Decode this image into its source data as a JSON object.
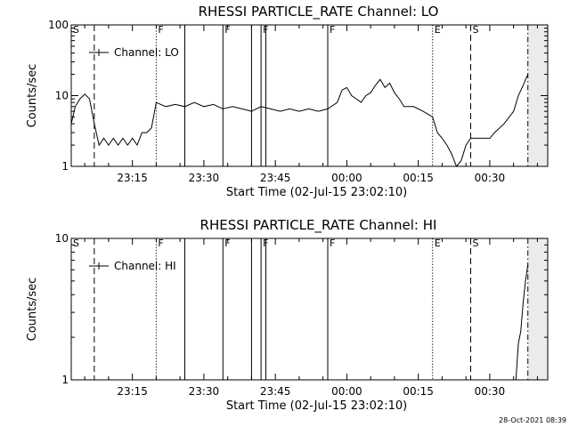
{
  "timestamp": "28-Oct-2021 08:39",
  "chart_data": [
    {
      "type": "line",
      "title": "RHESSI PARTICLE_RATE Channel: LO",
      "xlabel": "Start Time (02-Jul-15 23:02:10)",
      "ylabel": "Counts/sec",
      "yscale": "log",
      "ylim": [
        1,
        100
      ],
      "yticks": [
        "1",
        "10",
        "100"
      ],
      "xlim": [
        "23:02:10",
        "00:42:10"
      ],
      "xticks": [
        "23:15",
        "23:30",
        "23:45",
        "00:00",
        "00:15",
        "00:30"
      ],
      "legend": {
        "position": "top-left",
        "entries": [
          "Channel: LO"
        ]
      },
      "shaded_region": [
        "00:38:00",
        "00:42:10"
      ],
      "markers": [
        {
          "label": "S",
          "time": "23:02:10",
          "style": "dashed"
        },
        {
          "label": "",
          "time": "23:07:00",
          "style": "dashed"
        },
        {
          "label": "F",
          "time": "23:20:00",
          "style": "dotted"
        },
        {
          "label": "",
          "time": "23:26:00",
          "style": "solid"
        },
        {
          "label": "F",
          "time": "23:34:00",
          "style": "solid"
        },
        {
          "label": "",
          "time": "23:40:00",
          "style": "solid"
        },
        {
          "label": "F",
          "time": "23:42:00",
          "style": "solid"
        },
        {
          "label": "",
          "time": "23:43:00",
          "style": "solid"
        },
        {
          "label": "F",
          "time": "23:56:00",
          "style": "solid"
        },
        {
          "label": "E",
          "time": "00:18:00",
          "style": "dotted"
        },
        {
          "label": "S",
          "time": "00:26:00",
          "style": "dashed"
        },
        {
          "label": "",
          "time": "00:38:00",
          "style": "dashdot"
        }
      ],
      "series": [
        {
          "name": "Channel: LO",
          "points": [
            [
              "23:02:10",
              4
            ],
            [
              "23:03:00",
              7
            ],
            [
              "23:04:00",
              9
            ],
            [
              "23:05:00",
              10.5
            ],
            [
              "23:06:00",
              9
            ],
            [
              "23:07:00",
              4
            ],
            [
              "23:08:00",
              2
            ],
            [
              "23:09:00",
              2.5
            ],
            [
              "23:10:00",
              2
            ],
            [
              "23:11:00",
              2.5
            ],
            [
              "23:12:00",
              2
            ],
            [
              "23:13:00",
              2.5
            ],
            [
              "23:14:00",
              2
            ],
            [
              "23:15:00",
              2.5
            ],
            [
              "23:16:00",
              2
            ],
            [
              "23:17:00",
              3
            ],
            [
              "23:18:00",
              3
            ],
            [
              "23:19:00",
              3.5
            ],
            [
              "23:20:00",
              8
            ],
            [
              "23:22:00",
              7
            ],
            [
              "23:24:00",
              7.5
            ],
            [
              "23:26:00",
              7
            ],
            [
              "23:28:00",
              8
            ],
            [
              "23:30:00",
              7
            ],
            [
              "23:32:00",
              7.5
            ],
            [
              "23:34:00",
              6.5
            ],
            [
              "23:36:00",
              7
            ],
            [
              "23:38:00",
              6.5
            ],
            [
              "23:40:00",
              6
            ],
            [
              "23:42:00",
              7
            ],
            [
              "23:44:00",
              6.5
            ],
            [
              "23:46:00",
              6
            ],
            [
              "23:48:00",
              6.5
            ],
            [
              "23:50:00",
              6
            ],
            [
              "23:52:00",
              6.5
            ],
            [
              "23:54:00",
              6
            ],
            [
              "23:56:00",
              6.5
            ],
            [
              "23:58:00",
              8
            ],
            [
              "23:59:00",
              12
            ],
            [
              "00:00:00",
              13
            ],
            [
              "00:01:00",
              10
            ],
            [
              "00:02:00",
              9
            ],
            [
              "00:03:00",
              8
            ],
            [
              "00:04:00",
              10
            ],
            [
              "00:05:00",
              11
            ],
            [
              "00:06:00",
              14
            ],
            [
              "00:07:00",
              17
            ],
            [
              "00:08:00",
              13
            ],
            [
              "00:09:00",
              15
            ],
            [
              "00:10:00",
              11
            ],
            [
              "00:11:00",
              9
            ],
            [
              "00:12:00",
              7
            ],
            [
              "00:14:00",
              7
            ],
            [
              "00:16:00",
              6
            ],
            [
              "00:18:00",
              5
            ],
            [
              "00:19:00",
              3
            ],
            [
              "00:20:00",
              2.5
            ],
            [
              "00:21:00",
              2
            ],
            [
              "00:22:00",
              1.5
            ],
            [
              "00:23:00",
              1
            ],
            [
              "00:24:00",
              1.2
            ],
            [
              "00:25:00",
              2
            ],
            [
              "00:26:00",
              2.5
            ],
            [
              "00:27:00",
              2.5
            ],
            [
              "00:28:00",
              2.5
            ],
            [
              "00:29:00",
              2.5
            ],
            [
              "00:30:00",
              2.5
            ],
            [
              "00:31:00",
              3
            ],
            [
              "00:33:00",
              4
            ],
            [
              "00:35:00",
              6
            ],
            [
              "00:36:00",
              10
            ],
            [
              "00:37:00",
              14
            ],
            [
              "00:38:00",
              20
            ]
          ]
        }
      ]
    },
    {
      "type": "line",
      "title": "RHESSI PARTICLE_RATE Channel: HI",
      "xlabel": "Start Time (02-Jul-15 23:02:10)",
      "ylabel": "Counts/sec",
      "yscale": "log",
      "ylim": [
        1,
        10
      ],
      "yticks": [
        "1",
        "10"
      ],
      "xlim": [
        "23:02:10",
        "00:42:10"
      ],
      "xticks": [
        "23:15",
        "23:30",
        "23:45",
        "00:00",
        "00:15",
        "00:30"
      ],
      "legend": {
        "position": "top-left",
        "entries": [
          "Channel: HI"
        ]
      },
      "shaded_region": [
        "00:38:00",
        "00:42:10"
      ],
      "markers": [
        {
          "label": "S",
          "time": "23:02:10",
          "style": "dashed"
        },
        {
          "label": "",
          "time": "23:07:00",
          "style": "dashed"
        },
        {
          "label": "F",
          "time": "23:20:00",
          "style": "dotted"
        },
        {
          "label": "",
          "time": "23:26:00",
          "style": "solid"
        },
        {
          "label": "F",
          "time": "23:34:00",
          "style": "solid"
        },
        {
          "label": "",
          "time": "23:40:00",
          "style": "solid"
        },
        {
          "label": "F",
          "time": "23:42:00",
          "style": "solid"
        },
        {
          "label": "",
          "time": "23:43:00",
          "style": "solid"
        },
        {
          "label": "F",
          "time": "23:56:00",
          "style": "solid"
        },
        {
          "label": "E",
          "time": "00:18:00",
          "style": "dotted"
        },
        {
          "label": "S",
          "time": "00:26:00",
          "style": "dashed"
        },
        {
          "label": "",
          "time": "00:38:00",
          "style": "dashdot"
        }
      ],
      "series": [
        {
          "name": "Channel: HI",
          "points": [
            [
              "00:35:30",
              1
            ],
            [
              "00:36:00",
              1.8
            ],
            [
              "00:36:30",
              2.2
            ],
            [
              "00:37:00",
              3.5
            ],
            [
              "00:37:30",
              5
            ],
            [
              "00:38:00",
              6.5
            ]
          ]
        }
      ]
    }
  ]
}
